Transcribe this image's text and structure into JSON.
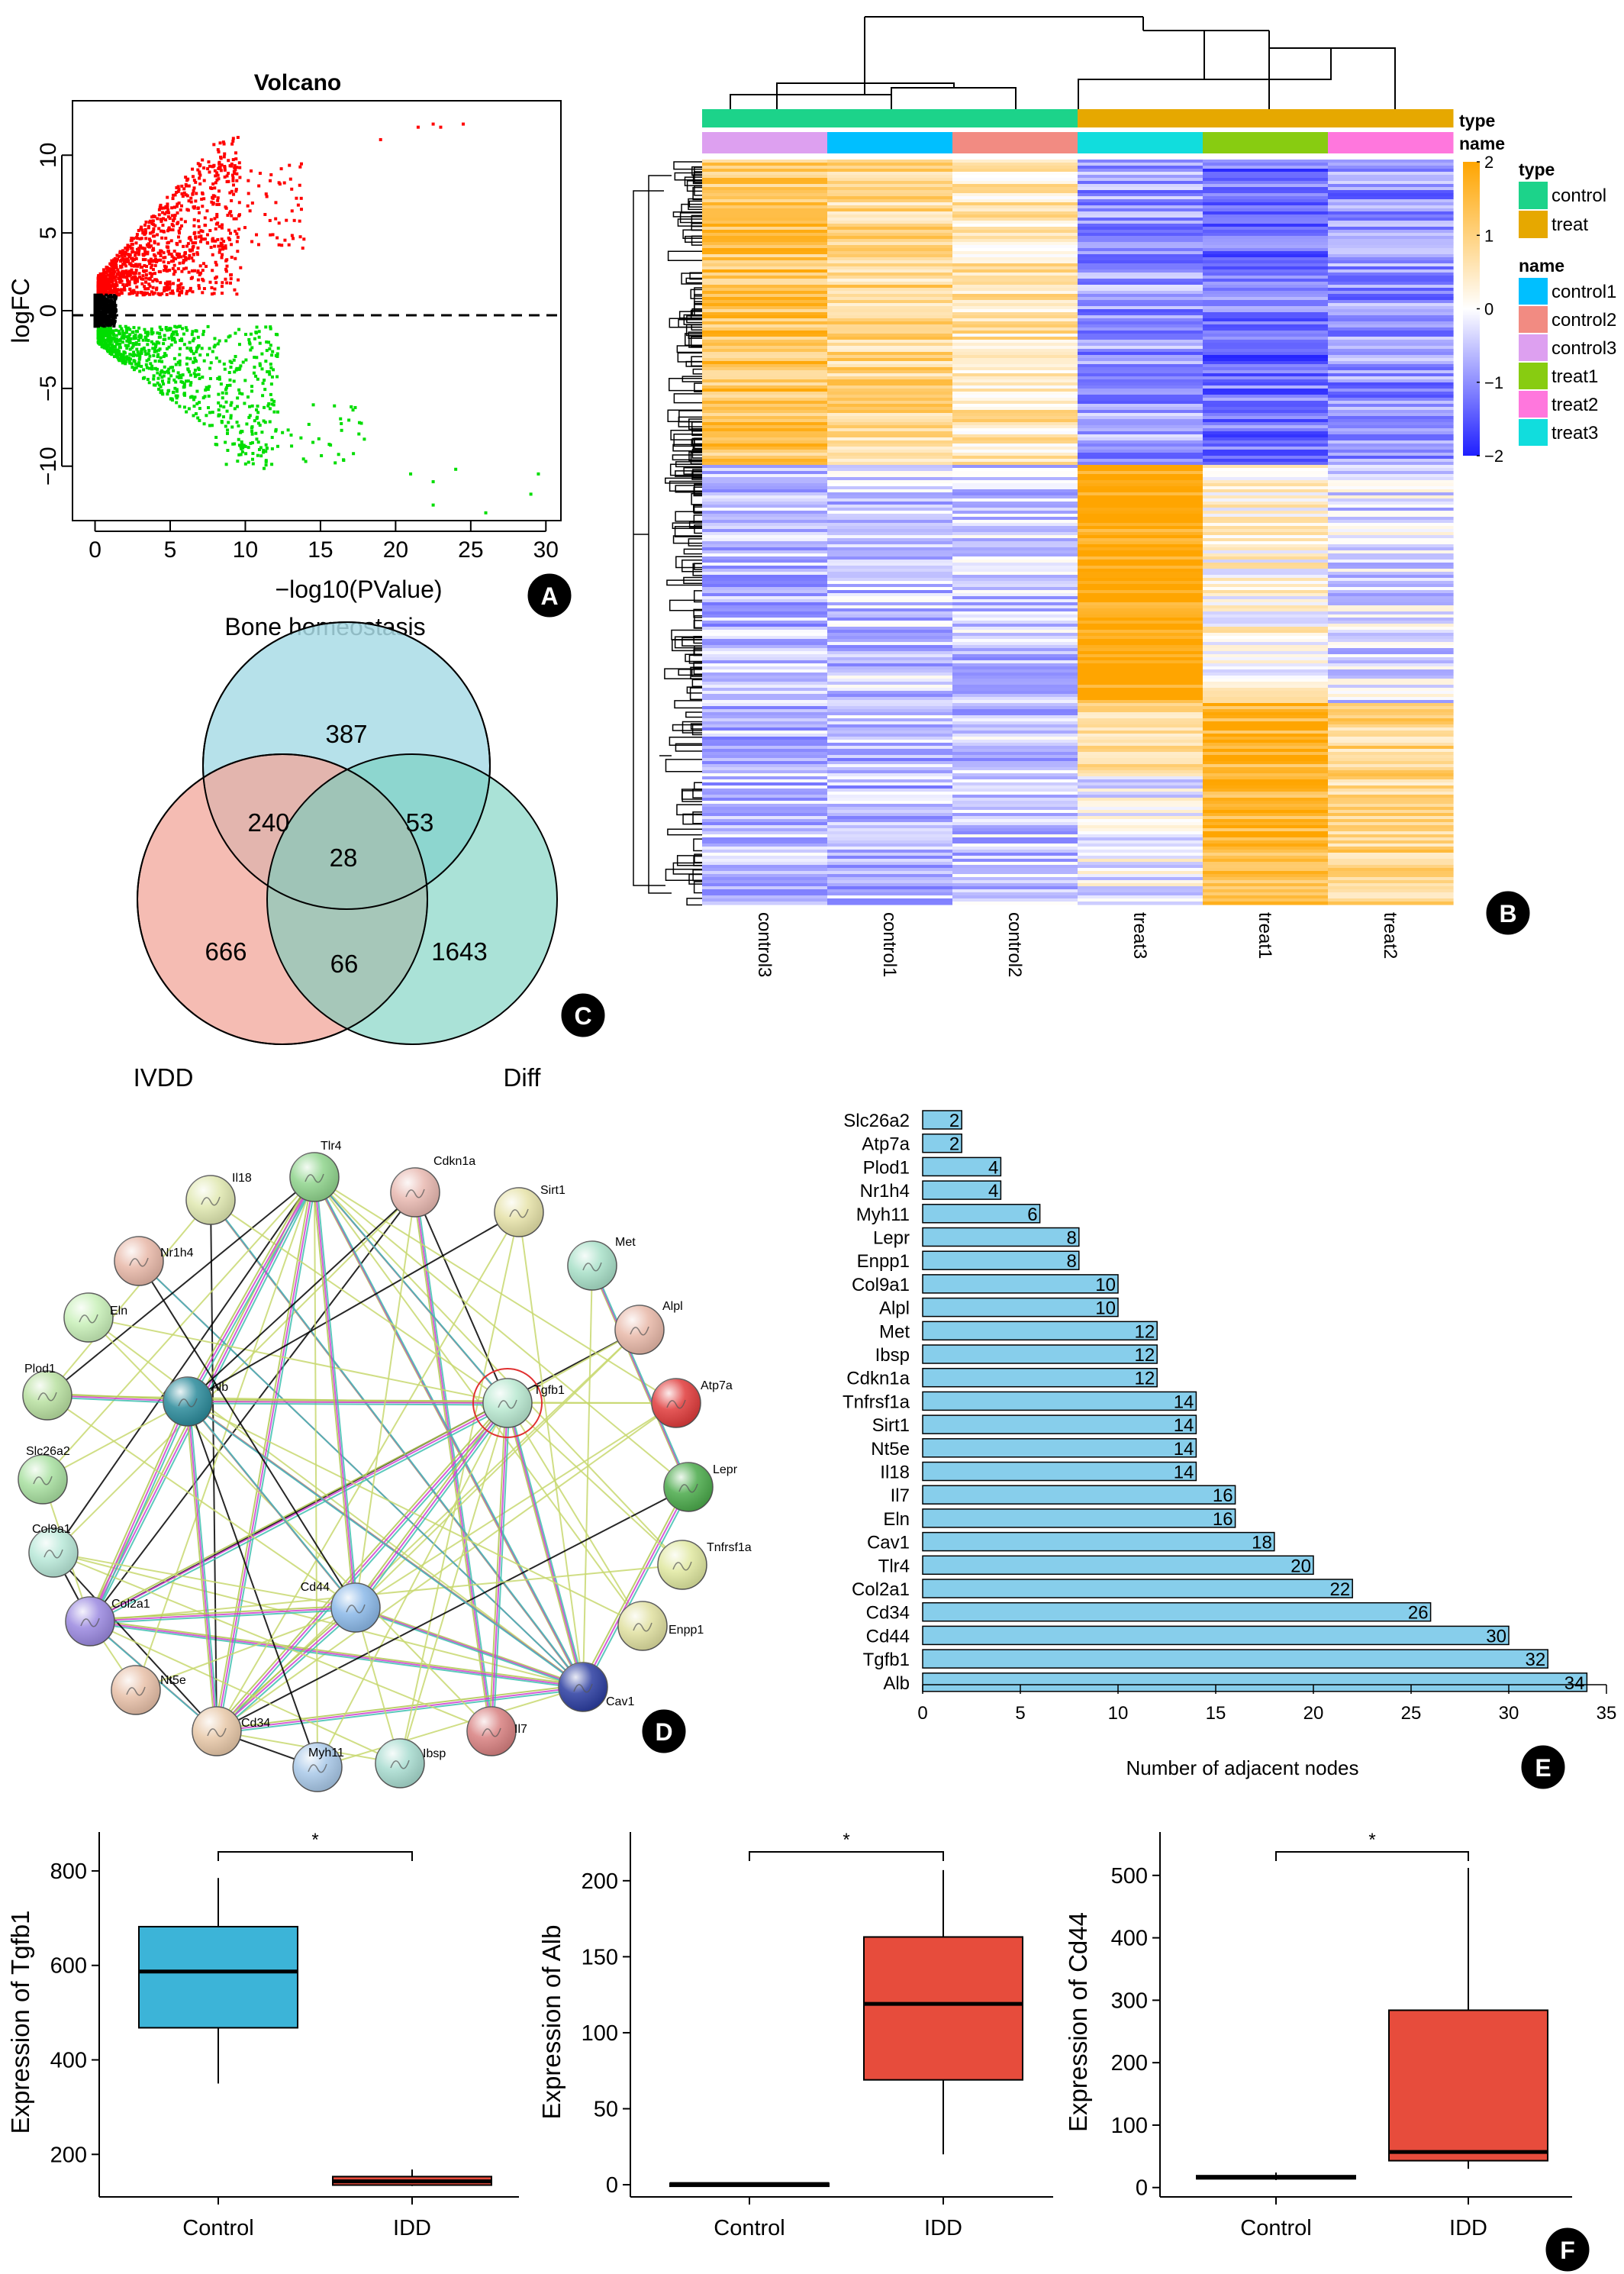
{
  "panel_letters": {
    "a": "A",
    "b": "B",
    "c": "C",
    "d": "D",
    "e": "E",
    "f": "F"
  },
  "colors": {
    "volcano_up": "#ff0000",
    "volcano_down": "#00dd00",
    "volcano_ns": "#000000",
    "heat_high": "#ffa500",
    "heat_mid": "#ffffff",
    "heat_low": "#1f1fff",
    "type_control": "#1cd38a",
    "type_treat": "#e6a800",
    "name_control1": "#00bfff",
    "name_control2": "#f28b82",
    "name_control3": "#dda0f0",
    "name_treat1": "#88cc11",
    "name_treat2": "#ff77dd",
    "name_treat3": "#11dddd",
    "venn_bone": "#a9dce6",
    "venn_ivdd": "#f2a59a",
    "venn_diff": "#72cfbd",
    "ppi_bar": "#87ceeb",
    "box_control": "#3cb4d8",
    "box_idd": "#e74c3c"
  },
  "chart_data": [
    {
      "id": "volcano",
      "type": "scatter",
      "title": "Volcano",
      "xlabel": "−log10(PValue)",
      "ylabel": "logFC",
      "xlim": [
        -1.5,
        31
      ],
      "ylim": [
        -13.5,
        13.5
      ],
      "xticks": [
        0,
        5,
        10,
        15,
        20,
        25,
        30
      ],
      "yticks": [
        -10,
        -5,
        0,
        5,
        10
      ],
      "ytick_labels": [
        "−10",
        "−5",
        "0",
        "5",
        "10"
      ],
      "threshold_y": 0,
      "series": [
        {
          "group": "up",
          "n_points": 1100
        },
        {
          "group": "down",
          "n_points": 800
        },
        {
          "group": "ns",
          "n_points": 500
        }
      ],
      "outliers": [
        [
          19,
          11
        ],
        [
          21.5,
          11.8
        ],
        [
          22.5,
          12
        ],
        [
          23,
          11.8
        ],
        [
          24.5,
          12
        ],
        [
          21,
          -10.5
        ],
        [
          22.5,
          -11
        ],
        [
          24,
          -10.2
        ],
        [
          26,
          -13
        ],
        [
          29.5,
          -10.5
        ],
        [
          29,
          -11.8
        ],
        [
          22.5,
          -12.5
        ]
      ]
    },
    {
      "id": "heatmap",
      "type": "heatmap",
      "columns": [
        "control3",
        "control1",
        "control2",
        "treat3",
        "treat1",
        "treat2"
      ],
      "column_types": [
        "control",
        "control",
        "control",
        "treat",
        "treat",
        "treat"
      ],
      "annotation_labels": {
        "type": "type",
        "name": "name"
      },
      "legend_type_title": "type",
      "legend_type": [
        "control",
        "treat"
      ],
      "legend_name_title": "name",
      "legend_name": [
        "control1",
        "control2",
        "control3",
        "treat1",
        "treat2",
        "treat3"
      ],
      "color_scale": {
        "min": -2,
        "max": 2,
        "ticks": [
          2,
          1,
          0,
          -1,
          -2
        ],
        "tick_labels": [
          "2",
          "1",
          "0",
          "−1",
          "−2"
        ]
      },
      "row_blocks": [
        {
          "fraction": 0.41,
          "values": [
            1.3,
            0.9,
            0.6,
            -0.9,
            -1.3,
            -1.0
          ]
        },
        {
          "fraction": 0.32,
          "values": [
            -0.6,
            -0.5,
            -0.5,
            2.0,
            0.2,
            -0.3
          ]
        },
        {
          "fraction": 0.27,
          "values": [
            -0.6,
            -0.6,
            -0.5,
            -0.1,
            1.6,
            0.9
          ]
        }
      ]
    },
    {
      "id": "venn",
      "type": "venn",
      "sets": [
        "Bone homeostasis",
        "IVDD",
        "Diff"
      ],
      "regions": {
        "bone_only": "387",
        "ivdd_only": "666",
        "diff_only": "1643",
        "bone_ivdd": "240",
        "bone_diff": "53",
        "ivdd_diff": "66",
        "all": "28"
      }
    },
    {
      "id": "ppi_network",
      "type": "network",
      "nodes": [
        "Tlr4",
        "Cdkn1a",
        "Sirt1",
        "Met",
        "Alpl",
        "Atp7a",
        "Lepr",
        "Tnfrsf1a",
        "Enpp1",
        "Cav1",
        "Il7",
        "Ibsp",
        "Myh11",
        "Cd34",
        "Nt5e",
        "Col2a1",
        "Col9a1",
        "Slc26a2",
        "Plod1",
        "Eln",
        "Nr1h4",
        "Il18",
        "Alb",
        "Tgfb1",
        "Cd44"
      ]
    },
    {
      "id": "ppi_degree",
      "type": "bar",
      "orientation": "horizontal",
      "xlabel": "Number of adjacent nodes",
      "xlim": [
        0,
        35
      ],
      "xticks": [
        0,
        5,
        10,
        15,
        20,
        25,
        30,
        35
      ],
      "categories": [
        "Slc26a2",
        "Atp7a",
        "Plod1",
        "Nr1h4",
        "Myh11",
        "Lepr",
        "Enpp1",
        "Col9a1",
        "Alpl",
        "Met",
        "Ibsp",
        "Cdkn1a",
        "Tnfrsf1a",
        "Sirt1",
        "Nt5e",
        "Il18",
        "Il7",
        "Eln",
        "Cav1",
        "Tlr4",
        "Col2a1",
        "Cd34",
        "Cd44",
        "Tgfb1",
        "Alb"
      ],
      "values": [
        2,
        2,
        4,
        4,
        6,
        8,
        8,
        10,
        10,
        12,
        12,
        12,
        14,
        14,
        14,
        14,
        16,
        16,
        18,
        20,
        22,
        26,
        30,
        32,
        34
      ]
    },
    {
      "id": "box_tgfb1",
      "type": "box",
      "ylabel": "Expression of Tgfb1",
      "categories": [
        "Control",
        "IDD"
      ],
      "ylim": [
        110,
        850
      ],
      "yticks": [
        200,
        400,
        600,
        800
      ],
      "significance": "*",
      "boxes": [
        {
          "min": 350,
          "q1": 468,
          "median": 587,
          "q3": 682,
          "max": 785
        },
        {
          "min": 133,
          "q1": 135,
          "median": 143,
          "q3": 153,
          "max": 168
        }
      ]
    },
    {
      "id": "box_alb",
      "type": "box",
      "ylabel": "Expression of Alb",
      "categories": [
        "Control",
        "IDD"
      ],
      "ylim": [
        -8,
        222
      ],
      "yticks": [
        0,
        50,
        100,
        150,
        200
      ],
      "significance": "*",
      "boxes": [
        {
          "min": 0,
          "q1": 0,
          "median": 0.5,
          "q3": 1,
          "max": 1.5
        },
        {
          "min": 20,
          "q1": 69,
          "median": 119,
          "q3": 163,
          "max": 207
        }
      ]
    },
    {
      "id": "box_cd44",
      "type": "box",
      "ylabel": "Expression of Cd44",
      "categories": [
        "Control",
        "IDD"
      ],
      "ylim": [
        -15,
        545
      ],
      "yticks": [
        0,
        100,
        200,
        300,
        400,
        500
      ],
      "significance": "*",
      "boxes": [
        {
          "min": 12,
          "q1": 14,
          "median": 16,
          "q3": 19,
          "max": 24
        },
        {
          "min": 30,
          "q1": 43,
          "median": 57,
          "q3": 284,
          "max": 512
        }
      ]
    }
  ]
}
